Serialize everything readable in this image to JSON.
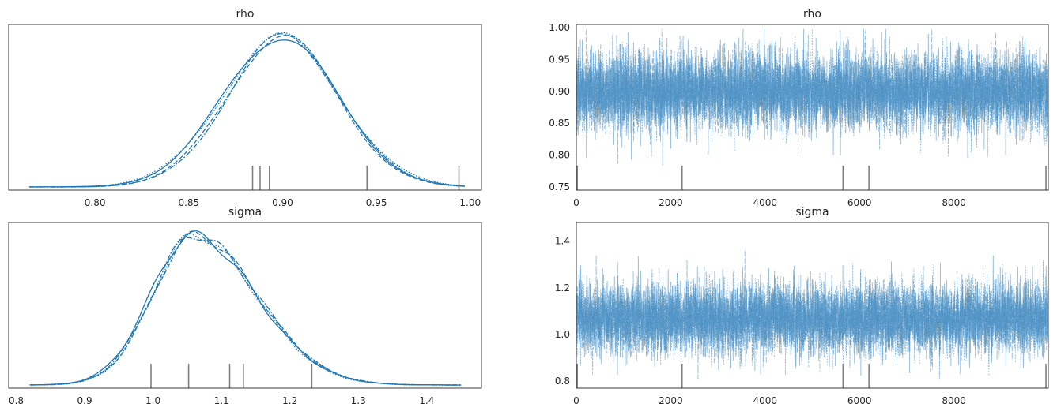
{
  "figure": {
    "type": "trace_plot"
  },
  "colors": {
    "line": "#1f77b4",
    "trace": "#4a8fc3",
    "rug": "#808080",
    "text": "#262626"
  },
  "chart_data": [
    {
      "type": "line",
      "panel": "density",
      "title": "rho",
      "xlabel": "",
      "ylabel": "",
      "xlim": [
        0.754,
        1.006
      ],
      "ylim": [
        0,
        1.05
      ],
      "xticks": [
        "0.80",
        "0.85",
        "0.90",
        "0.95",
        "1.00"
      ],
      "xtick_values": [
        0.8,
        0.85,
        0.9,
        0.95,
        1.0
      ],
      "yticks": [],
      "grid": false,
      "kde": {
        "mean": 0.9,
        "sd": 0.03,
        "x_range": [
          0.765,
          0.997
        ],
        "n_chains": 4
      },
      "rug": [
        0.884,
        0.888,
        0.893,
        0.945,
        0.994
      ]
    },
    {
      "type": "line",
      "panel": "trace",
      "title": "rho",
      "xlabel": "",
      "ylabel": "",
      "xlim": [
        0,
        10000
      ],
      "ylim": [
        0.745,
        1.005
      ],
      "xticks": [
        "0",
        "2000",
        "4000",
        "6000",
        "8000"
      ],
      "xtick_values": [
        0,
        2000,
        4000,
        6000,
        8000
      ],
      "yticks": [
        "0.75",
        "0.80",
        "0.85",
        "0.90",
        "0.95",
        "1.00"
      ],
      "ytick_values": [
        0.75,
        0.8,
        0.85,
        0.9,
        0.95,
        1.0
      ],
      "grid": false,
      "trace": {
        "mean": 0.9,
        "sd": 0.03,
        "min": 0.76,
        "max": 0.998,
        "draws": 10000,
        "n_chains": 4
      },
      "rug": [
        20,
        2240,
        5650,
        6200,
        9950
      ]
    },
    {
      "type": "line",
      "panel": "density",
      "title": "sigma",
      "xlabel": "",
      "ylabel": "",
      "xlim": [
        0.789,
        1.48
      ],
      "ylim": [
        0,
        1.05
      ],
      "xticks": [
        "0.8",
        "0.9",
        "1.0",
        "1.1",
        "1.2",
        "1.3",
        "1.4"
      ],
      "xtick_values": [
        0.8,
        0.9,
        1.0,
        1.1,
        1.2,
        1.3,
        1.4
      ],
      "yticks": [],
      "grid": false,
      "kde": {
        "mean": 1.06,
        "sd_left": 0.06,
        "sd_right": 0.09,
        "x_range": [
          0.82,
          1.45
        ],
        "n_chains": 4
      },
      "rug": [
        0.997,
        1.052,
        1.112,
        1.132,
        1.232
      ]
    },
    {
      "type": "line",
      "panel": "trace",
      "title": "sigma",
      "xlabel": "",
      "ylabel": "",
      "xlim": [
        0,
        10000
      ],
      "ylim": [
        0.77,
        1.48
      ],
      "xticks": [
        "0",
        "2000",
        "4000",
        "6000",
        "8000"
      ],
      "xtick_values": [
        0,
        2000,
        4000,
        6000,
        8000
      ],
      "yticks": [
        "0.8",
        "1.0",
        "1.2",
        "1.4"
      ],
      "ytick_values": [
        0.8,
        1.0,
        1.2,
        1.4
      ],
      "grid": false,
      "trace": {
        "mean": 1.07,
        "sd": 0.075,
        "min": 0.81,
        "max": 1.45,
        "draws": 10000,
        "n_chains": 4
      },
      "rug": [
        20,
        2240,
        5650,
        6200,
        9950
      ]
    }
  ]
}
